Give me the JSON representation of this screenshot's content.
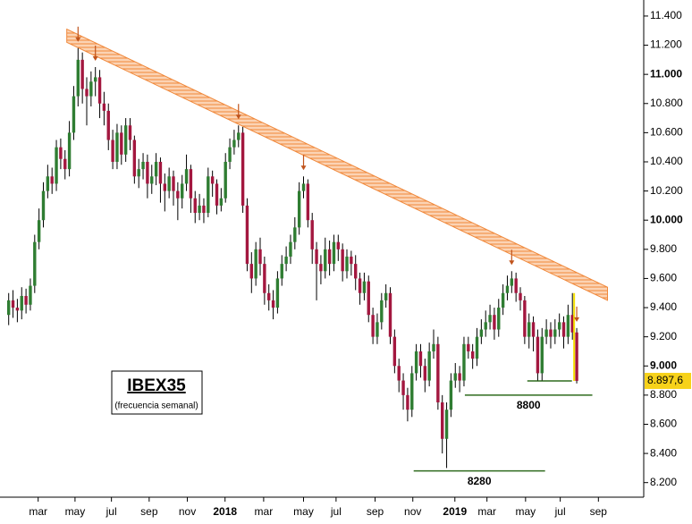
{
  "chart_data": {
    "type": "candlestick",
    "title": "IBEX35",
    "subtitle": "(frecuencia semanal)",
    "up_color": "#2f7d32",
    "down_color": "#a3173f",
    "ylim": [
      8100,
      11510
    ],
    "yticks": [
      {
        "value": 8200,
        "label": "8.200"
      },
      {
        "value": 8400,
        "label": "8.400"
      },
      {
        "value": 8600,
        "label": "8.600"
      },
      {
        "value": 8800,
        "label": "8.800"
      },
      {
        "value": 9000,
        "label": "9.000"
      },
      {
        "value": 9200,
        "label": "9.200"
      },
      {
        "value": 9400,
        "label": "9.400"
      },
      {
        "value": 9600,
        "label": "9.600"
      },
      {
        "value": 9800,
        "label": "9.800"
      },
      {
        "value": 10000,
        "label": "10.000"
      },
      {
        "value": 10200,
        "label": "10.200"
      },
      {
        "value": 10400,
        "label": "10.400"
      },
      {
        "value": 10600,
        "label": "10.600"
      },
      {
        "value": 10800,
        "label": "10.800"
      },
      {
        "value": 11000,
        "label": "11.000"
      },
      {
        "value": 11200,
        "label": "11.200"
      },
      {
        "value": 11400,
        "label": "11.400"
      }
    ],
    "xlim": [
      -2,
      146.45
    ],
    "xticks": [
      {
        "value": 6.8,
        "label": "mar"
      },
      {
        "value": 15.3,
        "label": "may"
      },
      {
        "value": 23.7,
        "label": "jul"
      },
      {
        "value": 32.4,
        "label": "sep"
      },
      {
        "value": 41.2,
        "label": "nov"
      },
      {
        "value": 49.9,
        "label": "2018"
      },
      {
        "value": 58.8,
        "label": "mar"
      },
      {
        "value": 68,
        "label": "may"
      },
      {
        "value": 75.5,
        "label": "jul"
      },
      {
        "value": 84.5,
        "label": "sep"
      },
      {
        "value": 93.2,
        "label": "nov"
      },
      {
        "value": 102.9,
        "label": "2019"
      },
      {
        "value": 110.3,
        "label": "mar"
      },
      {
        "value": 119.2,
        "label": "may"
      },
      {
        "value": 127.2,
        "label": "jul"
      },
      {
        "value": 136,
        "label": "sep"
      }
    ],
    "candles": [
      [
        9350,
        9500,
        9280,
        9450
      ],
      [
        9450,
        9520,
        9330,
        9400
      ],
      [
        9400,
        9460,
        9300,
        9380
      ],
      [
        9380,
        9540,
        9320,
        9480
      ],
      [
        9480,
        9530,
        9360,
        9420
      ],
      [
        9420,
        9600,
        9380,
        9550
      ],
      [
        9550,
        9900,
        9500,
        9850
      ],
      [
        9850,
        10080,
        9800,
        10000
      ],
      [
        10000,
        10260,
        9950,
        10200
      ],
      [
        10200,
        10380,
        10150,
        10300
      ],
      [
        10300,
        10360,
        10180,
        10250
      ],
      [
        10250,
        10550,
        10200,
        10500
      ],
      [
        10500,
        10560,
        10350,
        10420
      ],
      [
        10420,
        10480,
        10280,
        10350
      ],
      [
        10350,
        10680,
        10300,
        10600
      ],
      [
        10600,
        10920,
        10550,
        10850
      ],
      [
        10850,
        11180,
        10780,
        11100
      ],
      [
        11100,
        11150,
        10800,
        10900
      ],
      [
        10900,
        10980,
        10650,
        10850
      ],
      [
        10850,
        11020,
        10780,
        10950
      ],
      [
        10950,
        11050,
        10850,
        10980
      ],
      [
        10980,
        11030,
        10700,
        10800
      ],
      [
        10800,
        10880,
        10650,
        10750
      ],
      [
        10750,
        10800,
        10480,
        10550
      ],
      [
        10550,
        10620,
        10350,
        10400
      ],
      [
        10400,
        10660,
        10350,
        10600
      ],
      [
        10600,
        10650,
        10380,
        10450
      ],
      [
        10450,
        10700,
        10400,
        10650
      ],
      [
        10650,
        10700,
        10480,
        10550
      ],
      [
        10550,
        10580,
        10250,
        10300
      ],
      [
        10300,
        10420,
        10220,
        10350
      ],
      [
        10350,
        10460,
        10280,
        10400
      ],
      [
        10400,
        10450,
        10150,
        10250
      ],
      [
        10250,
        10380,
        10180,
        10300
      ],
      [
        10300,
        10460,
        10240,
        10400
      ],
      [
        10400,
        10430,
        10120,
        10250
      ],
      [
        10250,
        10320,
        10060,
        10200
      ],
      [
        10200,
        10360,
        10150,
        10300
      ],
      [
        10300,
        10340,
        10100,
        10200
      ],
      [
        10200,
        10260,
        10000,
        10150
      ],
      [
        10150,
        10310,
        10080,
        10250
      ],
      [
        10250,
        10450,
        10200,
        10350
      ],
      [
        10350,
        10380,
        10050,
        10150
      ],
      [
        10150,
        10200,
        9980,
        10050
      ],
      [
        10050,
        10180,
        10000,
        10100
      ],
      [
        10100,
        10150,
        9980,
        10050
      ],
      [
        10050,
        10360,
        10020,
        10300
      ],
      [
        10300,
        10340,
        10160,
        10250
      ],
      [
        10250,
        10280,
        10040,
        10100
      ],
      [
        10100,
        10220,
        10060,
        10150
      ],
      [
        10150,
        10460,
        10120,
        10400
      ],
      [
        10400,
        10560,
        10350,
        10500
      ],
      [
        10500,
        10620,
        10450,
        10550
      ],
      [
        10550,
        10650,
        10500,
        10600
      ],
      [
        10600,
        10640,
        10050,
        10100
      ],
      [
        10100,
        10150,
        9650,
        9700
      ],
      [
        9700,
        9780,
        9500,
        9600
      ],
      [
        9600,
        9850,
        9550,
        9800
      ],
      [
        9800,
        9880,
        9620,
        9700
      ],
      [
        9700,
        9750,
        9420,
        9500
      ],
      [
        9500,
        9560,
        9380,
        9450
      ],
      [
        9450,
        9520,
        9320,
        9400
      ],
      [
        9400,
        9650,
        9360,
        9600
      ],
      [
        9600,
        9760,
        9550,
        9700
      ],
      [
        9700,
        9820,
        9650,
        9750
      ],
      [
        9750,
        9900,
        9700,
        9850
      ],
      [
        9850,
        10020,
        9800,
        9950
      ],
      [
        9950,
        10260,
        9900,
        10200
      ],
      [
        10200,
        10300,
        10150,
        10250
      ],
      [
        10250,
        10280,
        9950,
        10000
      ],
      [
        10000,
        10050,
        9700,
        9800
      ],
      [
        9800,
        9850,
        9450,
        9700
      ],
      [
        9700,
        9760,
        9560,
        9650
      ],
      [
        9650,
        9880,
        9600,
        9800
      ],
      [
        9800,
        9860,
        9620,
        9700
      ],
      [
        9700,
        9900,
        9650,
        9850
      ],
      [
        9850,
        9900,
        9720,
        9800
      ],
      [
        9800,
        9840,
        9580,
        9650
      ],
      [
        9650,
        9800,
        9600,
        9750
      ],
      [
        9750,
        9790,
        9620,
        9700
      ],
      [
        9700,
        9760,
        9520,
        9600
      ],
      [
        9600,
        9640,
        9420,
        9500
      ],
      [
        9500,
        9640,
        9450,
        9580
      ],
      [
        9580,
        9620,
        9300,
        9350
      ],
      [
        9350,
        9400,
        9150,
        9200
      ],
      [
        9200,
        9360,
        9150,
        9300
      ],
      [
        9300,
        9500,
        9250,
        9450
      ],
      [
        9450,
        9560,
        9400,
        9500
      ],
      [
        9500,
        9540,
        9150,
        9200
      ],
      [
        9200,
        9250,
        8950,
        9000
      ],
      [
        9000,
        9050,
        8820,
        8900
      ],
      [
        8900,
        8950,
        8700,
        8800
      ],
      [
        8800,
        8850,
        8620,
        8700
      ],
      [
        8700,
        9000,
        8650,
        8950
      ],
      [
        8950,
        9150,
        8900,
        9100
      ],
      [
        9100,
        9150,
        8920,
        9000
      ],
      [
        9000,
        9050,
        8820,
        8900
      ],
      [
        8900,
        9160,
        8860,
        9100
      ],
      [
        9100,
        9250,
        9050,
        9150
      ],
      [
        9150,
        9200,
        8700,
        8750
      ],
      [
        8750,
        8800,
        8400,
        8500
      ],
      [
        8500,
        8750,
        8300,
        8700
      ],
      [
        8700,
        8950,
        8650,
        8900
      ],
      [
        8900,
        9020,
        8850,
        8950
      ],
      [
        8950,
        9000,
        8820,
        8900
      ],
      [
        8900,
        9200,
        8860,
        9150
      ],
      [
        9150,
        9200,
        9050,
        9100
      ],
      [
        9100,
        9150,
        8980,
        9050
      ],
      [
        9050,
        9260,
        9000,
        9200
      ],
      [
        9200,
        9320,
        9150,
        9250
      ],
      [
        9250,
        9380,
        9200,
        9300
      ],
      [
        9300,
        9420,
        9250,
        9350
      ],
      [
        9350,
        9400,
        9180,
        9250
      ],
      [
        9250,
        9460,
        9200,
        9400
      ],
      [
        9400,
        9560,
        9350,
        9500
      ],
      [
        9500,
        9620,
        9450,
        9550
      ],
      [
        9550,
        9650,
        9500,
        9600
      ],
      [
        9600,
        9640,
        9440,
        9500
      ],
      [
        9500,
        9540,
        9380,
        9450
      ],
      [
        9450,
        9480,
        9150,
        9200
      ],
      [
        9200,
        9360,
        9120,
        9300
      ],
      [
        9300,
        9340,
        9100,
        9200
      ],
      [
        9200,
        9250,
        8900,
        8950
      ],
      [
        8950,
        9260,
        8900,
        9200
      ],
      [
        9200,
        9320,
        9150,
        9250
      ],
      [
        9250,
        9300,
        9120,
        9200
      ],
      [
        9200,
        9320,
        9150,
        9250
      ],
      [
        9250,
        9360,
        9200,
        9300
      ],
      [
        9300,
        9340,
        9120,
        9200
      ],
      [
        9200,
        9420,
        9150,
        9350
      ],
      [
        9350,
        9500,
        9180,
        9230
      ],
      [
        9230,
        9260,
        8880,
        8897.6
      ]
    ],
    "last_label": {
      "value": 8897.6,
      "label": "8.897,6"
    },
    "peak_markers": [
      16,
      20,
      53,
      68,
      116,
      131
    ],
    "trendline": {
      "x": [
        13.4,
        138.1
      ],
      "upper": [
        11310,
        9540
      ],
      "lower": [
        11220,
        9450
      ],
      "color": "#f0883a"
    },
    "levels": [
      {
        "value": 8800,
        "x": [
          105.2,
          134.6
        ],
        "color": "#2f6b1e"
      },
      {
        "value": 8280,
        "x": [
          93.4,
          123.7
        ],
        "color": "#2f6b1e"
      },
      {
        "x": [
          119.6,
          129.9
        ],
        "color": "#2f6b1e"
      }
    ]
  }
}
